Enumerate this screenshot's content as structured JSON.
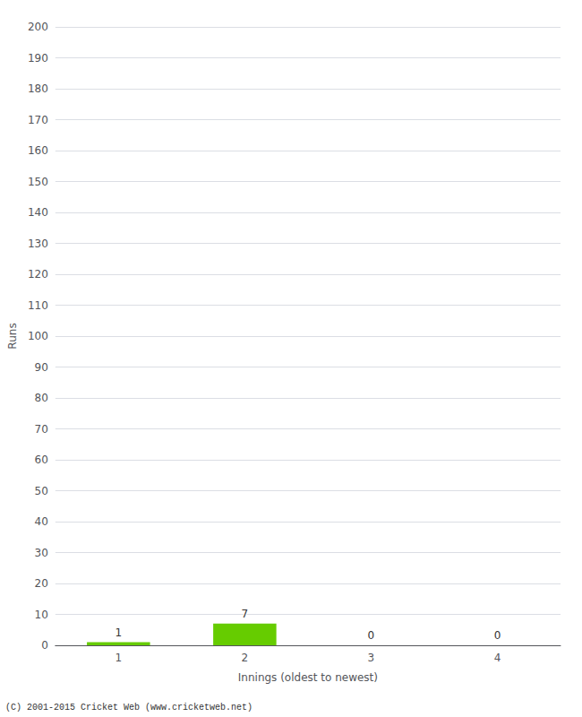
{
  "chart_data": {
    "type": "bar",
    "xlabel": "Innings (oldest to newest)",
    "ylabel": "Runs",
    "categories": [
      1,
      2,
      3,
      4
    ],
    "values": [
      1,
      7,
      0,
      0
    ],
    "color": "#66cc00",
    "ylim": [
      0,
      200
    ],
    "yticks": [
      0,
      10,
      20,
      30,
      40,
      50,
      60,
      70,
      80,
      90,
      100,
      110,
      120,
      130,
      140,
      150,
      160,
      170,
      180,
      190,
      200
    ],
    "grid": true,
    "data_labels": true,
    "annotations": [
      "(C) 2001-2015 Cricket Web (www.cricketweb.net)"
    ]
  }
}
